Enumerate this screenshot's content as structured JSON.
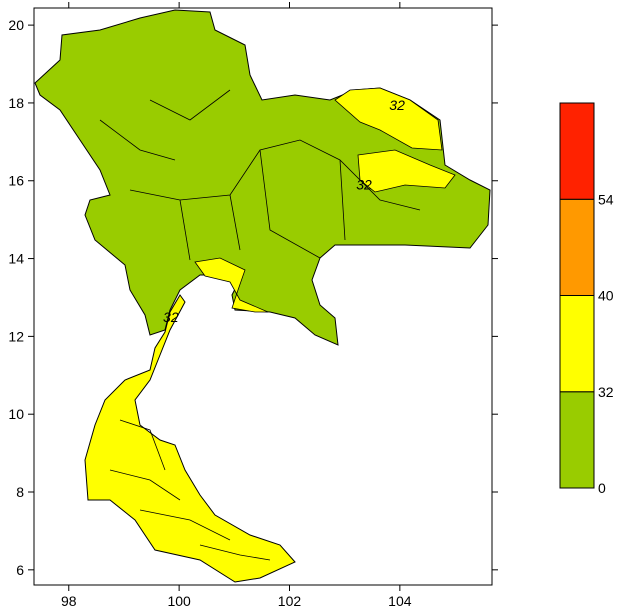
{
  "map": {
    "xlim": [
      97.37,
      105.67
    ],
    "ylim": [
      5.61,
      20.44
    ],
    "xticks": [
      98,
      100,
      102,
      104
    ],
    "yticks": [
      6,
      8,
      10,
      12,
      14,
      16,
      18,
      20
    ],
    "contour_labels": [
      {
        "value": 32,
        "lon": 103.95,
        "lat": 17.95
      },
      {
        "value": 32,
        "lon": 103.35,
        "lat": 15.9
      },
      {
        "value": 32,
        "lon": 99.85,
        "lat": 12.5
      }
    ]
  },
  "colorbar": {
    "levels": [
      0,
      32,
      40,
      54
    ],
    "colors": [
      "#99cc00",
      "#ffff00",
      "#ff9900",
      "#ff2200"
    ]
  }
}
